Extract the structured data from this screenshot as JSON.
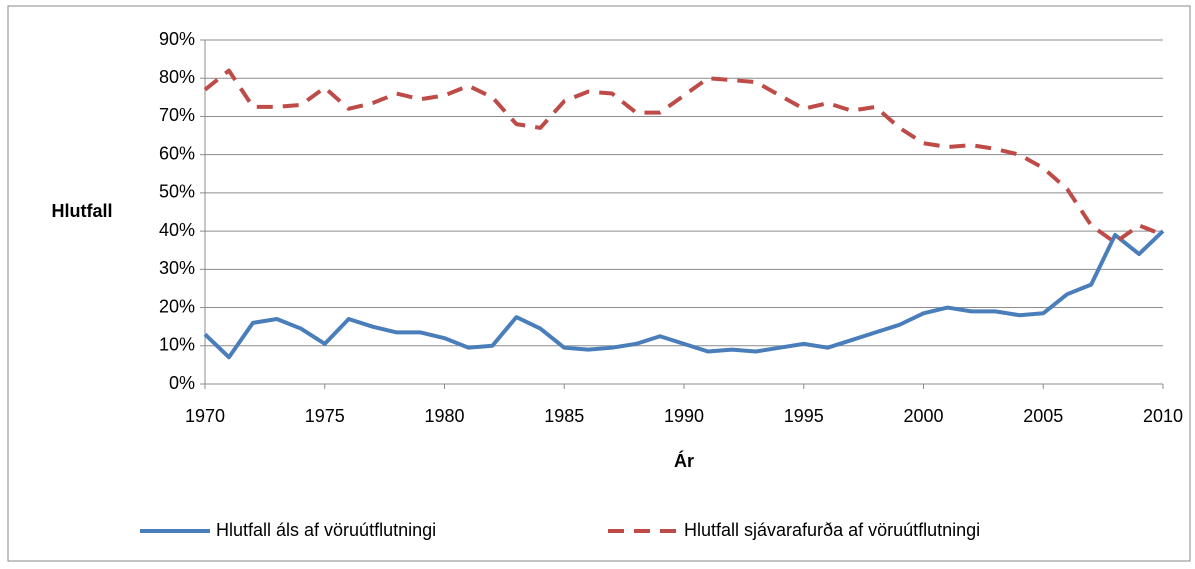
{
  "chart_data": {
    "type": "line",
    "y_label": "Hlutfall",
    "x_label": "Ár",
    "x": [
      1970,
      1971,
      1972,
      1973,
      1974,
      1975,
      1976,
      1977,
      1978,
      1979,
      1980,
      1981,
      1982,
      1983,
      1984,
      1985,
      1986,
      1987,
      1988,
      1989,
      1990,
      1991,
      1992,
      1993,
      1994,
      1995,
      1996,
      1997,
      1998,
      1999,
      2000,
      2001,
      2002,
      2003,
      2004,
      2005,
      2006,
      2007,
      2008,
      2009,
      2010
    ],
    "series": [
      {
        "name": "Hlutfall áls af vöruútflutningi",
        "color": "#4a7ebb",
        "line_style": "solid",
        "values": [
          13,
          7,
          16,
          17,
          14.5,
          10.5,
          17,
          15,
          13.5,
          13.5,
          12,
          9.5,
          10,
          17.5,
          14.5,
          9.5,
          9,
          9.5,
          10.5,
          12.5,
          10.5,
          8.5,
          9,
          8.5,
          9.5,
          10.5,
          9.5,
          11.5,
          13.5,
          15.5,
          18.5,
          20,
          19,
          19,
          18,
          18.5,
          23.5,
          26,
          39,
          34,
          40
        ]
      },
      {
        "name": "Hlutfall sjávarafurða af vöruútflutningi",
        "color": "#be4b48",
        "line_style": "dashed",
        "values": [
          77,
          82,
          72.5,
          72.5,
          73,
          77.5,
          72,
          73.5,
          76,
          74.5,
          75.5,
          78,
          75,
          68,
          67,
          74,
          76.5,
          76,
          71,
          71,
          75.5,
          80,
          79.5,
          79,
          75.5,
          72,
          73.5,
          71.5,
          72.5,
          67,
          63,
          62,
          62.5,
          61.5,
          60,
          56.5,
          51,
          41.5,
          37,
          41.5,
          39
        ]
      }
    ],
    "xlim": [
      1970,
      2010
    ],
    "xticks": [
      1970,
      1975,
      1980,
      1985,
      1990,
      1995,
      2000,
      2005,
      2010
    ],
    "ylim": [
      0,
      90
    ],
    "yticks": [
      {
        "value": 0,
        "label": "0%"
      },
      {
        "value": 10,
        "label": "10%"
      },
      {
        "value": 20,
        "label": "20%"
      },
      {
        "value": 30,
        "label": "30%"
      },
      {
        "value": 40,
        "label": "40%"
      },
      {
        "value": 50,
        "label": "50%"
      },
      {
        "value": 60,
        "label": "60%"
      },
      {
        "value": 70,
        "label": "70%"
      },
      {
        "value": 80,
        "label": "80%"
      },
      {
        "value": 90,
        "label": "90%"
      }
    ],
    "grid": true,
    "legend": "bottom"
  }
}
